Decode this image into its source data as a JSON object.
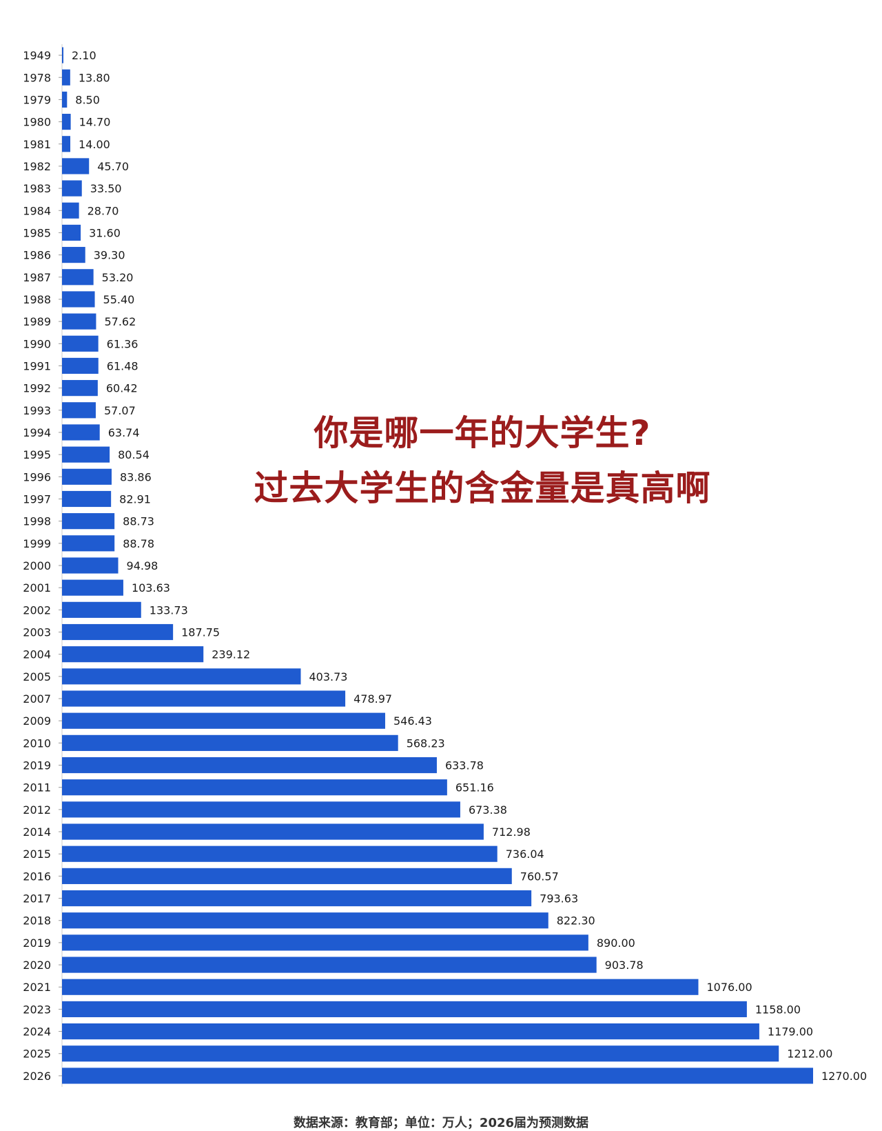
{
  "title": {
    "line1": "你是哪一年的大学生?",
    "line2": "过去大学生的含金量是真高啊"
  },
  "footer": "数据来源：教育部；单位：万人；2026届为预测数据",
  "colors": {
    "bar": "#1f5bd0",
    "title": "#9b1c1c"
  },
  "chart_data": {
    "type": "bar",
    "orientation": "horizontal",
    "categories": [
      "1949",
      "1978",
      "1979",
      "1980",
      "1981",
      "1982",
      "1983",
      "1984",
      "1985",
      "1986",
      "1987",
      "1988",
      "1989",
      "1990",
      "1991",
      "1992",
      "1993",
      "1994",
      "1995",
      "1996",
      "1997",
      "1998",
      "1999",
      "2000",
      "2001",
      "2002",
      "2003",
      "2004",
      "2005",
      "2007",
      "2009",
      "2010",
      "2019",
      "2011",
      "2012",
      "2014",
      "2015",
      "2016",
      "2017",
      "2018",
      "2019",
      "2020",
      "2021",
      "2023",
      "2024",
      "2025",
      "2026"
    ],
    "values": [
      2.1,
      13.8,
      8.5,
      14.7,
      14.0,
      45.7,
      33.5,
      28.7,
      31.6,
      39.3,
      53.2,
      55.4,
      57.62,
      61.36,
      61.48,
      60.42,
      57.07,
      63.74,
      80.54,
      83.86,
      82.91,
      88.73,
      88.78,
      94.98,
      103.63,
      133.73,
      187.75,
      239.12,
      403.73,
      478.97,
      546.43,
      568.23,
      633.78,
      651.16,
      673.38,
      712.98,
      736.04,
      760.57,
      793.63,
      822.3,
      890.0,
      903.78,
      1076.0,
      1158.0,
      1179.0,
      1212.0,
      1270.0
    ],
    "value_labels": [
      "2.10",
      "13.80",
      "8.50",
      "14.70",
      "14.00",
      "45.70",
      "33.50",
      "28.70",
      "31.60",
      "39.30",
      "53.20",
      "55.40",
      "57.62",
      "61.36",
      "61.48",
      "60.42",
      "57.07",
      "63.74",
      "80.54",
      "83.86",
      "82.91",
      "88.73",
      "88.78",
      "94.98",
      "103.63",
      "133.73",
      "187.75",
      "239.12",
      "403.73",
      "478.97",
      "546.43",
      "568.23",
      "633.78",
      "651.16",
      "673.38",
      "712.98",
      "736.04",
      "760.57",
      "793.63",
      "822.30",
      "890.00",
      "903.78",
      "1076.00",
      "1158.00",
      "1179.00",
      "1212.00",
      "1270.00"
    ],
    "xlim": [
      0,
      1270
    ],
    "grid": false,
    "legend": "none"
  }
}
